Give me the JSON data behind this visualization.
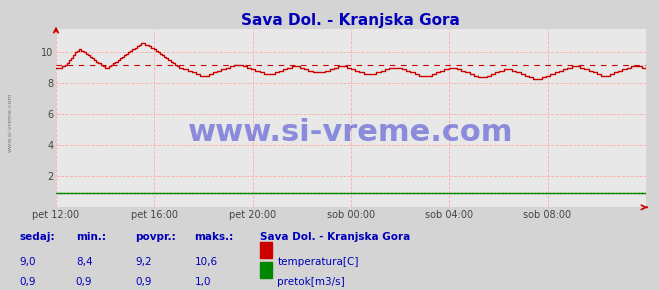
{
  "title": "Sava Dol. - Kranjska Gora",
  "bg_color": "#d4d4d4",
  "plot_bg_color": "#e8e8e8",
  "grid_color": "#ffaaaa",
  "xlim": [
    0,
    288
  ],
  "ylim": [
    0,
    11.5
  ],
  "yticks": [
    2,
    4,
    6,
    8,
    10
  ],
  "xtick_labels": [
    "pet 12:00",
    "pet 16:00",
    "pet 20:00",
    "sob 00:00",
    "sob 04:00",
    "sob 08:00"
  ],
  "xtick_positions": [
    0,
    48,
    96,
    144,
    192,
    240
  ],
  "avg_temp": 9.2,
  "temp_color": "#cc0000",
  "flow_color": "#008800",
  "avg_line_color": "#cc0000",
  "watermark": "www.si-vreme.com",
  "watermark_color": "#1a1acc",
  "watermark_fontsize": 22,
  "axis_arrow_color": "#cc0000",
  "sidebar_text": "www.si-vreme.com",
  "sidebar_color": "#666666",
  "legend_title": "Sava Dol. - Kranjska Gora",
  "legend_items": [
    {
      "label": "temperatura[C]",
      "color": "#cc0000"
    },
    {
      "label": "pretok[m3/s]",
      "color": "#008800"
    }
  ],
  "table_headers": [
    "sedaj:",
    "min.:",
    "povpr.:",
    "maks.:"
  ],
  "table_data": [
    [
      "9,0",
      "8,4",
      "9,2",
      "10,6"
    ],
    [
      "0,9",
      "0,9",
      "0,9",
      "1,0"
    ]
  ],
  "table_color": "#0000bb",
  "title_color": "#0000bb",
  "title_fontsize": 11,
  "flow_data_value": 0.9,
  "temp_data": [
    9.0,
    9.0,
    9.0,
    9.1,
    9.2,
    9.3,
    9.5,
    9.6,
    9.8,
    10.0,
    10.1,
    10.2,
    10.1,
    10.0,
    9.9,
    9.8,
    9.7,
    9.6,
    9.5,
    9.4,
    9.3,
    9.2,
    9.1,
    9.0,
    9.0,
    9.1,
    9.2,
    9.3,
    9.4,
    9.5,
    9.6,
    9.7,
    9.8,
    9.9,
    10.0,
    10.1,
    10.2,
    10.3,
    10.4,
    10.5,
    10.6,
    10.6,
    10.5,
    10.5,
    10.4,
    10.3,
    10.2,
    10.1,
    10.0,
    9.9,
    9.8,
    9.7,
    9.6,
    9.5,
    9.4,
    9.3,
    9.2,
    9.1,
    9.0,
    9.0,
    8.9,
    8.9,
    8.8,
    8.8,
    8.7,
    8.7,
    8.6,
    8.6,
    8.5,
    8.5,
    8.5,
    8.5,
    8.6,
    8.6,
    8.7,
    8.7,
    8.8,
    8.8,
    8.9,
    8.9,
    9.0,
    9.0,
    9.1,
    9.1,
    9.2,
    9.2,
    9.2,
    9.2,
    9.1,
    9.1,
    9.0,
    9.0,
    8.9,
    8.9,
    8.8,
    8.8,
    8.7,
    8.7,
    8.6,
    8.6,
    8.6,
    8.6,
    8.6,
    8.7,
    8.7,
    8.8,
    8.8,
    8.9,
    8.9,
    9.0,
    9.0,
    9.1,
    9.1,
    9.1,
    9.1,
    9.0,
    9.0,
    8.9,
    8.9,
    8.8,
    8.8,
    8.7,
    8.7,
    8.7,
    8.7,
    8.7,
    8.7,
    8.8,
    8.8,
    8.9,
    8.9,
    9.0,
    9.0,
    9.1,
    9.1,
    9.1,
    9.1,
    9.0,
    9.0,
    8.9,
    8.9,
    8.8,
    8.8,
    8.7,
    8.7,
    8.6,
    8.6,
    8.6,
    8.6,
    8.6,
    8.6,
    8.7,
    8.7,
    8.8,
    8.8,
    8.9,
    8.9,
    9.0,
    9.0,
    9.0,
    9.0,
    9.0,
    9.0,
    8.9,
    8.9,
    8.8,
    8.8,
    8.7,
    8.7,
    8.6,
    8.6,
    8.5,
    8.5,
    8.5,
    8.5,
    8.5,
    8.5,
    8.6,
    8.6,
    8.7,
    8.7,
    8.8,
    8.8,
    8.9,
    8.9,
    9.0,
    9.0,
    9.0,
    9.0,
    8.9,
    8.9,
    8.8,
    8.8,
    8.7,
    8.7,
    8.6,
    8.6,
    8.5,
    8.5,
    8.4,
    8.4,
    8.4,
    8.4,
    8.5,
    8.5,
    8.6,
    8.6,
    8.7,
    8.7,
    8.8,
    8.8,
    8.9,
    8.9,
    8.9,
    8.9,
    8.8,
    8.8,
    8.7,
    8.7,
    8.6,
    8.6,
    8.5,
    8.5,
    8.4,
    8.4,
    8.3,
    8.3,
    8.3,
    8.3,
    8.4,
    8.4,
    8.5,
    8.5,
    8.6,
    8.6,
    8.7,
    8.7,
    8.8,
    8.8,
    8.9,
    8.9,
    9.0,
    9.0,
    9.1,
    9.1,
    9.1,
    9.1,
    9.0,
    9.0,
    8.9,
    8.9,
    8.8,
    8.8,
    8.7,
    8.7,
    8.6,
    8.6,
    8.5,
    8.5,
    8.5,
    8.5,
    8.6,
    8.6,
    8.7,
    8.7,
    8.8,
    8.8,
    8.9,
    8.9,
    9.0,
    9.0,
    9.1,
    9.1,
    9.1,
    9.1,
    9.1,
    9.0,
    9.0,
    9.0
  ]
}
